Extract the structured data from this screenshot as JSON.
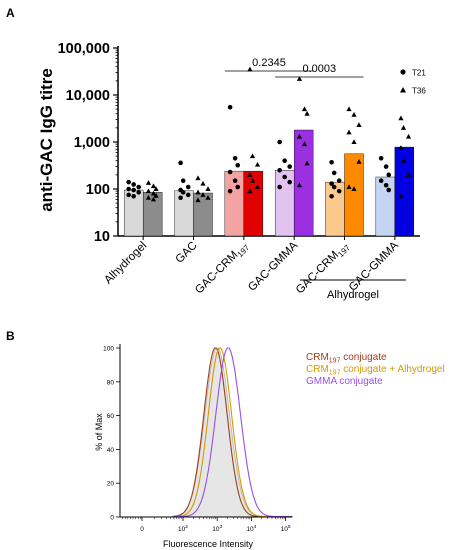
{
  "panel_a": {
    "letter": "A"
  },
  "panel_b": {
    "letter": "B"
  },
  "chart_data": [
    {
      "type": "bar",
      "scale": "log",
      "ylabel": "anti-GAC IgG titre",
      "ylim": [
        10,
        100000
      ],
      "yticks": [
        {
          "value": 10,
          "label": "10"
        },
        {
          "value": 100,
          "label": "100"
        },
        {
          "value": 1000,
          "label": "1,000"
        },
        {
          "value": 10000,
          "label": "10,000"
        },
        {
          "value": 100000,
          "label": "100,000"
        }
      ],
      "categories": [
        {
          "label": "Alhydrogel",
          "sub": ""
        },
        {
          "label": "GAC",
          "sub": ""
        },
        {
          "label": "GAC-CRM",
          "sub": "197"
        },
        {
          "label": "GAC-GMMA",
          "sub": ""
        },
        {
          "label": "GAC-CRM",
          "sub": "197"
        },
        {
          "label": "GAC-GMMA",
          "sub": ""
        }
      ],
      "group_label": "Alhydrogel",
      "legend": [
        {
          "marker": "circle",
          "label": "T21"
        },
        {
          "marker": "triangle",
          "label": "T36"
        }
      ],
      "bars": [
        {
          "cat": 0,
          "tp": "T21",
          "value": 95,
          "color": "#d9d9d9",
          "marker": "circle",
          "points": [
            140,
            125,
            110,
            100,
            95,
            85,
            75,
            70
          ]
        },
        {
          "cat": 0,
          "tp": "T36",
          "value": 85,
          "color": "#8c8c8c",
          "marker": "triangle",
          "points": [
            135,
            115,
            100,
            90,
            80,
            72,
            65,
            60
          ]
        },
        {
          "cat": 1,
          "tp": "T21",
          "value": 92,
          "color": "#d9d9d9",
          "marker": "circle",
          "points": [
            360,
            150,
            110,
            95,
            85,
            75,
            65
          ]
        },
        {
          "cat": 1,
          "tp": "T36",
          "value": 82,
          "color": "#8c8c8c",
          "marker": "triangle",
          "points": [
            170,
            130,
            100,
            85,
            75,
            65,
            58
          ]
        },
        {
          "cat": 2,
          "tp": "T21",
          "value": 240,
          "color": "#f4a3a3",
          "marker": "circle",
          "points": [
            5500,
            450,
            320,
            230,
            150,
            110,
            90
          ]
        },
        {
          "cat": 2,
          "tp": "T36",
          "value": 240,
          "color": "#e00000",
          "marker": "triangle",
          "points": [
            35000,
            500,
            330,
            200,
            150,
            110,
            90
          ]
        },
        {
          "cat": 3,
          "tp": "T21",
          "value": 250,
          "color": "#e2c2ee",
          "marker": "circle",
          "points": [
            1000,
            400,
            300,
            250,
            180,
            140,
            110
          ]
        },
        {
          "cat": 3,
          "tp": "T36",
          "value": 1800,
          "color": "#9b30e0",
          "marker": "triangle",
          "points": [
            22000,
            5000,
            4000,
            1300,
            900,
            350,
            120
          ]
        },
        {
          "cat": 4,
          "tp": "T21",
          "value": 140,
          "color": "#fbc98e",
          "marker": "circle",
          "points": [
            370,
            220,
            150,
            130,
            110,
            90,
            70
          ]
        },
        {
          "cat": 4,
          "tp": "T36",
          "value": 560,
          "color": "#ff8a00",
          "marker": "triangle",
          "points": [
            5000,
            3800,
            2300,
            1600,
            1000,
            380,
            110,
            100
          ]
        },
        {
          "cat": 5,
          "tp": "T21",
          "value": 180,
          "color": "#c5d4f2",
          "marker": "circle",
          "points": [
            450,
            300,
            200,
            150,
            120,
            95
          ]
        },
        {
          "cat": 5,
          "tp": "T36",
          "value": 780,
          "color": "#0000e0",
          "marker": "triangle",
          "points": [
            3200,
            2000,
            1300,
            750,
            400,
            200,
            70
          ]
        }
      ],
      "comparisons": [
        {
          "from_cat": 2,
          "to_cat": 3,
          "label": "0.2345"
        },
        {
          "from_cat": 3,
          "to_cat": 4,
          "label": "0.0003"
        }
      ]
    },
    {
      "type": "line",
      "subtype": "flow-histogram",
      "xlabel": "Fluorescence Intensity",
      "ylabel": "% of Max",
      "xscale": "biexponential",
      "xticks": [
        {
          "label": "0",
          "sup": ""
        },
        {
          "label": "10",
          "sup": "2"
        },
        {
          "label": "10",
          "sup": "3"
        },
        {
          "label": "10",
          "sup": "4"
        },
        {
          "label": "10",
          "sup": "5"
        }
      ],
      "yticks": [
        0,
        20,
        40,
        60,
        80,
        100
      ],
      "ylim": [
        0,
        100
      ],
      "series": [
        {
          "name": "",
          "peak_log10": 3.0,
          "width": 0.36,
          "color": "#b0b0b0",
          "fill": true
        },
        {
          "name": "CRM197 conjugate",
          "name_parts": [
            "CRM",
            "197",
            " conjugate"
          ],
          "peak_log10": 2.95,
          "width": 0.34,
          "color": "#a0401c"
        },
        {
          "name": "CRM197 conjugate + Alhydrogel",
          "name_parts": [
            "CRM",
            "197",
            " conjugate + Alhydrogel"
          ],
          "peak_log10": 3.08,
          "width": 0.34,
          "color": "#d49a00"
        },
        {
          "name": "GMMA conjugate",
          "name_parts": [
            "GMMA conjugate",
            "",
            ""
          ],
          "peak_log10": 3.32,
          "width": 0.36,
          "color": "#9a4ee8"
        }
      ]
    }
  ]
}
